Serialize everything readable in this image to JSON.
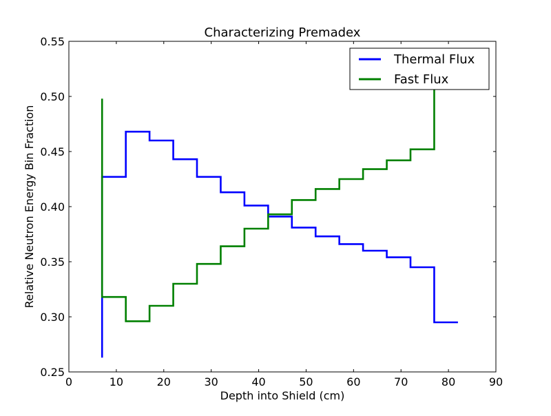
{
  "chart_data": {
    "type": "line",
    "title": "Characterizing Premadex",
    "xlabel": "Depth into Shield (cm)",
    "ylabel": "Relative Neutron Energy Bin Fraction",
    "xlim": [
      0,
      90
    ],
    "ylim": [
      0.25,
      0.55
    ],
    "xticks": [
      0,
      10,
      20,
      30,
      40,
      50,
      60,
      70,
      80,
      90
    ],
    "xtick_labels": [
      "0",
      "10",
      "20",
      "30",
      "40",
      "50",
      "60",
      "70",
      "80",
      "90"
    ],
    "yticks": [
      0.25,
      0.3,
      0.35,
      0.4,
      0.45,
      0.5,
      0.55
    ],
    "ytick_labels": [
      "0.25",
      "0.30",
      "0.35",
      "0.40",
      "0.45",
      "0.50",
      "0.55"
    ],
    "grid": false,
    "legend_position": "top-right",
    "step_style": "post",
    "series": [
      {
        "name": "Thermal Flux",
        "color": "#0000ff",
        "x": [
          7,
          7,
          12,
          17,
          22,
          27,
          32,
          37,
          42,
          47,
          52,
          57,
          62,
          67,
          72,
          77,
          82
        ],
        "y": [
          0.263,
          0.427,
          0.468,
          0.46,
          0.443,
          0.427,
          0.413,
          0.401,
          0.391,
          0.381,
          0.373,
          0.366,
          0.36,
          0.354,
          0.345,
          0.295,
          0.295
        ]
      },
      {
        "name": "Fast Flux",
        "color": "#008000",
        "x": [
          7,
          7,
          12,
          17,
          22,
          27,
          32,
          37,
          42,
          47,
          52,
          57,
          62,
          67,
          72,
          77,
          77
        ],
        "y": [
          0.498,
          0.318,
          0.296,
          0.31,
          0.33,
          0.348,
          0.364,
          0.38,
          0.393,
          0.406,
          0.416,
          0.425,
          0.434,
          0.442,
          0.452,
          0.51,
          0.51
        ]
      }
    ]
  }
}
